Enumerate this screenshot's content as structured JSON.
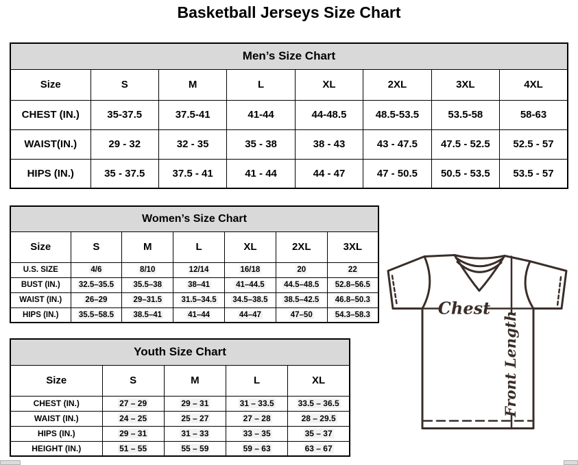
{
  "page": {
    "title": "Basketball Jerseys Size Chart"
  },
  "tables": {
    "men": {
      "title": "Men’s Size Chart",
      "size_label": "Size",
      "columns": [
        "S",
        "M",
        "L",
        "XL",
        "2XL",
        "3XL",
        "4XL"
      ],
      "rows": [
        {
          "label": "CHEST (IN.)",
          "values": [
            "35-37.5",
            "37.5-41",
            "41-44",
            "44-48.5",
            "48.5-53.5",
            "53.5-58",
            "58-63"
          ]
        },
        {
          "label": "WAIST(IN.)",
          "values": [
            "29 - 32",
            "32 - 35",
            "35 - 38",
            "38 - 43",
            "43 - 47.5",
            "47.5 - 52.5",
            "52.5 - 57"
          ]
        },
        {
          "label": "HIPS (IN.)",
          "values": [
            "35 - 37.5",
            "37.5 - 41",
            "41 - 44",
            "44 - 47",
            "47 - 50.5",
            "50.5 - 53.5",
            "53.5 - 57"
          ]
        }
      ]
    },
    "women": {
      "title": "Women’s Size Chart",
      "size_label": "Size",
      "columns": [
        "S",
        "M",
        "L",
        "XL",
        "2XL",
        "3XL"
      ],
      "rows": [
        {
          "label": "U.S. SIZE",
          "values": [
            "4/6",
            "8/10",
            "12/14",
            "16/18",
            "20",
            "22"
          ]
        },
        {
          "label": "BUST (IN.)",
          "values": [
            "32.5–35.5",
            "35.5–38",
            "38–41",
            "41–44.5",
            "44.5–48.5",
            "52.8–56.5"
          ]
        },
        {
          "label": "WAIST (IN.)",
          "values": [
            "26–29",
            "29–31.5",
            "31.5–34.5",
            "34.5–38.5",
            "38.5–42.5",
            "46.8–50.3"
          ]
        },
        {
          "label": "HIPS (IN.)",
          "values": [
            "35.5–58.5",
            "38.5–41",
            "41–44",
            "44–47",
            "47–50",
            "54.3–58.3"
          ]
        }
      ]
    },
    "youth": {
      "title": "Youth Size Chart",
      "size_label": "Size",
      "columns": [
        "S",
        "M",
        "L",
        "XL"
      ],
      "rows": [
        {
          "label": "CHEST (IN.)",
          "values": [
            "27 – 29",
            "29 – 31",
            "31 – 33.5",
            "33.5 – 36.5"
          ]
        },
        {
          "label": "WAIST (IN.)",
          "values": [
            "24 – 25",
            "25 – 27",
            "27 – 28",
            "28 – 29.5"
          ]
        },
        {
          "label": "HIPS (IN.)",
          "values": [
            "29 – 31",
            "31 – 33",
            "33 – 35",
            "35 – 37"
          ]
        },
        {
          "label": "HEIGHT (IN.)",
          "values": [
            "51 – 55",
            "55 – 59",
            "59 – 63",
            "63 – 67"
          ]
        }
      ]
    }
  },
  "diagram": {
    "chest_label": "Chest",
    "front_length_label": "Front Length"
  },
  "colors": {
    "table_header_bg": "#d9d9d9",
    "table_border": "#000000",
    "jersey_outline": "#3a2d28",
    "scrollbar_stub": "#dcdcdc"
  }
}
